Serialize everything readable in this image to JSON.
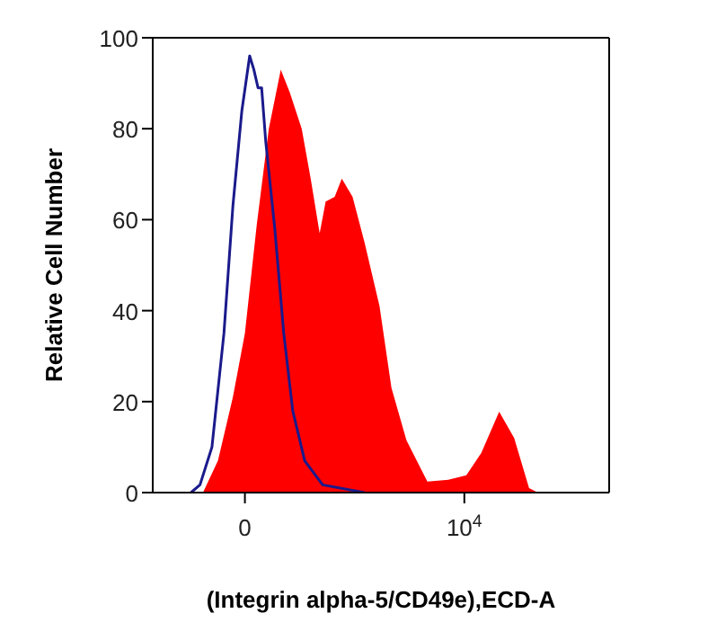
{
  "chart_data": {
    "type": "area",
    "xlabel": "(Integrin alpha-5/CD49e),ECD-A",
    "ylabel": "Relative Cell Number",
    "xlim": [
      -4200,
      16600
    ],
    "xticks": [
      {
        "value": 0,
        "label": "0"
      },
      {
        "value": 10000,
        "label": "10$^{4}$"
      }
    ],
    "ylim": [
      0,
      100
    ],
    "yticks": [
      0,
      20,
      40,
      60,
      80,
      100
    ],
    "series": [
      {
        "color": "#ff0000",
        "x": [
          -1911,
          -1229,
          -547,
          -2,
          543,
          1090,
          1635,
          2044,
          2589,
          2998,
          3407,
          3680,
          4090,
          4416,
          4907,
          5452,
          6134,
          6679,
          7361,
          8316,
          9270,
          10090,
          10770,
          11588,
          12270,
          12950,
          13360
        ],
        "values": [
          0,
          7,
          21,
          35,
          59,
          80,
          93,
          88,
          80,
          69,
          57,
          64,
          65,
          69,
          65,
          55,
          41,
          23,
          11.5,
          2.4,
          2.8,
          3.8,
          8.7,
          17.8,
          12,
          1,
          0
        ]
      },
      {
        "type": "line",
        "color": "#1a1a8c",
        "x": [
          -2456,
          -2047,
          -1502,
          -956,
          -547,
          -138,
          217,
          407,
          598,
          762,
          953,
          1362,
          1771,
          2180,
          2725,
          3543,
          5452
        ],
        "values": [
          0,
          1.7,
          10,
          35,
          63,
          84,
          96,
          93,
          89,
          89,
          77,
          58,
          35,
          18,
          7,
          1.7,
          0
        ]
      }
    ]
  }
}
